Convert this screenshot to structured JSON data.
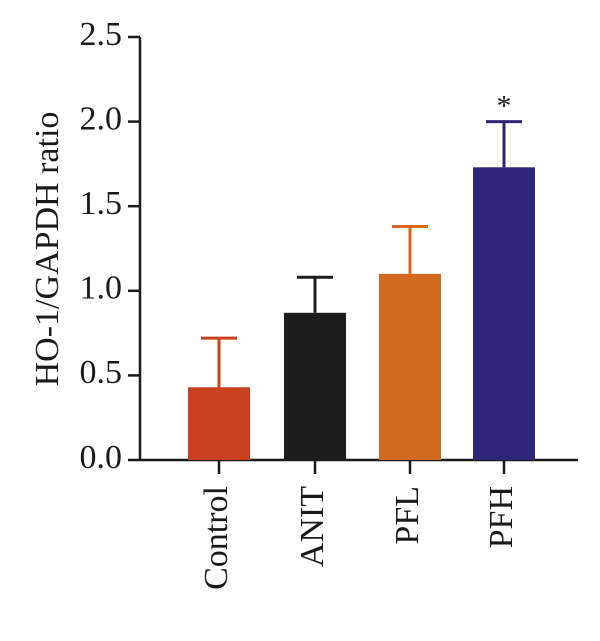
{
  "chart_data": {
    "type": "bar",
    "title": "",
    "xlabel": "",
    "ylabel": "HO-1/GAPDH ratio",
    "ylim": [
      0,
      2.5
    ],
    "yticks": [
      0.0,
      0.5,
      1.0,
      1.5,
      2.0,
      2.5
    ],
    "ytick_labels": [
      "0.0",
      "0.5",
      "1.0",
      "1.5",
      "2.0",
      "2.5"
    ],
    "categories": [
      "Control",
      "ANIT",
      "PFL",
      "PFH"
    ],
    "values": [
      0.43,
      0.87,
      1.1,
      1.73
    ],
    "error_upper": [
      0.72,
      1.08,
      1.38,
      2.0
    ],
    "colors": [
      "#c8401e",
      "#1c1c1c",
      "#d2691e",
      "#2e2478"
    ],
    "annotations": [
      "",
      "",
      "",
      "*"
    ],
    "grid": false,
    "legend": "none"
  }
}
